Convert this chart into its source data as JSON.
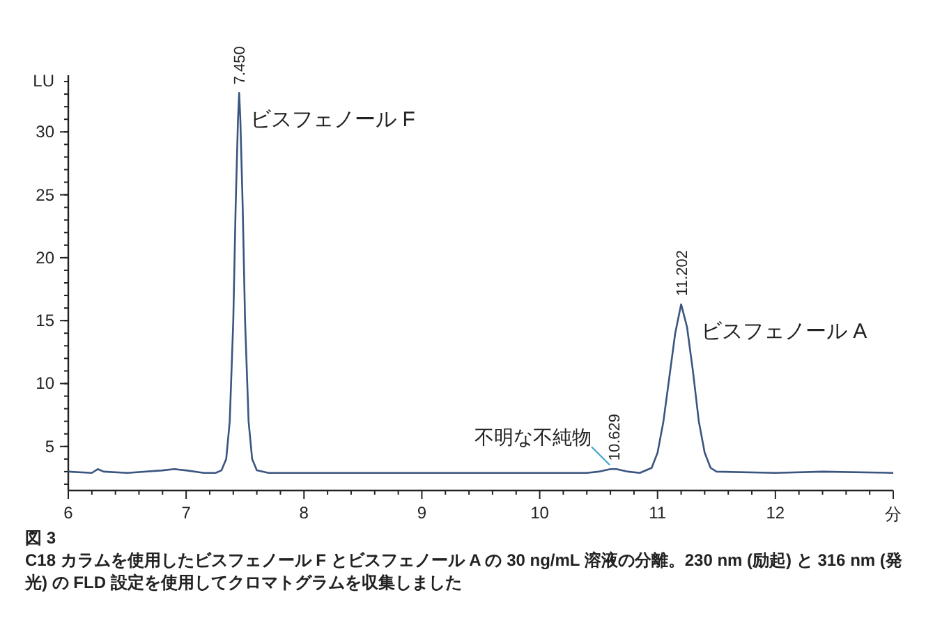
{
  "chart_data": {
    "type": "line",
    "x": [
      6.0,
      6.2,
      6.25,
      6.3,
      6.5,
      6.8,
      6.9,
      7.0,
      7.15,
      7.25,
      7.3,
      7.34,
      7.37,
      7.4,
      7.42,
      7.44,
      7.45,
      7.46,
      7.48,
      7.5,
      7.53,
      7.56,
      7.6,
      7.7,
      8.0,
      9.0,
      10.0,
      10.4,
      10.5,
      10.6,
      10.65,
      10.75,
      10.85,
      10.95,
      11.0,
      11.05,
      11.1,
      11.15,
      11.2,
      11.25,
      11.3,
      11.35,
      11.4,
      11.45,
      11.5,
      12.0,
      12.4,
      13.0
    ],
    "series": [
      {
        "color": "#3a5580",
        "values": [
          3.0,
          2.9,
          3.2,
          3.0,
          2.9,
          3.1,
          3.2,
          3.1,
          2.9,
          2.9,
          3.1,
          4,
          7,
          15,
          24,
          31,
          33.1,
          31,
          24,
          15,
          7,
          4,
          3.1,
          2.9,
          2.9,
          2.9,
          2.9,
          2.9,
          3.0,
          3.2,
          3.2,
          3.0,
          2.9,
          3.3,
          4.5,
          7,
          10.5,
          14,
          16.3,
          14.5,
          11,
          7,
          4.5,
          3.3,
          3.0,
          2.9,
          3.0,
          2.9
        ]
      }
    ],
    "xlim": [
      6,
      13
    ],
    "ylim": [
      1.5,
      34.5
    ],
    "xticks": [
      6,
      7,
      8,
      9,
      10,
      11,
      12,
      {
        "value": 13,
        "label": null
      }
    ],
    "yticks": [
      5,
      10,
      15,
      20,
      25,
      30
    ],
    "xlabel": "分",
    "ylabel": "LU",
    "annotations": [
      {
        "text": "7.450",
        "x": 7.45,
        "y": 33.1
      },
      {
        "text": "10.629",
        "x": 10.629,
        "y": 3.2
      },
      {
        "text": "11.202",
        "x": 11.202,
        "y": 16.3
      },
      {
        "text": "ビスフェノール F",
        "x": 7.45,
        "y": 33.1
      },
      {
        "text": "ビスフェノール A",
        "x": 11.202,
        "y": 16.3
      },
      {
        "text": "不明な不純物",
        "x": 10.629,
        "y": 3.2
      },
      "図 3",
      "C18 カラムを使用したビスフェノール F とビスフェノール A の 30 ng/mL 溶液の分離。230 nm (励起) と 316 nm (発光) の FLD 設定を使用してクロマトグラムを収集しました"
    ]
  }
}
